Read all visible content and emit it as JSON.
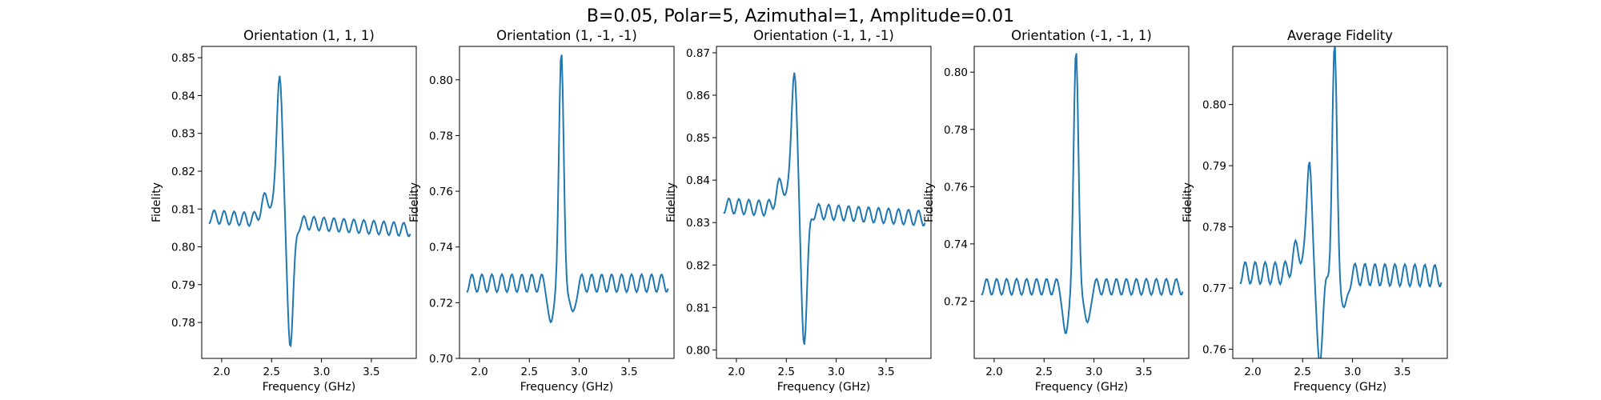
{
  "figure": {
    "suptitle": "B=0.05, Polar=5, Azimuthal=1, Amplitude=0.01",
    "line_color": "#1f77b4"
  },
  "chart_data": [
    {
      "type": "line",
      "title": "Orientation (1, 1, 1)",
      "xlabel": "Frequency (GHz)",
      "ylabel": "Fidelity",
      "xlim": [
        1.8,
        3.95
      ],
      "ylim": [
        0.7705,
        0.853
      ],
      "xticks": [
        2.0,
        2.5,
        3.0,
        3.5
      ],
      "yticks": [
        0.78,
        0.79,
        0.8,
        0.81,
        0.82,
        0.83,
        0.84,
        0.85
      ],
      "curve": {
        "x_start": 1.87,
        "x_end": 3.89,
        "points": 200,
        "baseline": 0.808,
        "drift": -0.0035,
        "osc_amp": 0.0018,
        "osc_period": 0.1,
        "peaks": [
          [
            2.58,
            0.04,
            0.028
          ],
          [
            2.69,
            -0.032,
            0.03
          ],
          [
            2.45,
            0.006,
            0.05
          ]
        ]
      }
    },
    {
      "type": "line",
      "title": "Orientation (1, -1, -1)",
      "xlabel": "Frequency (GHz)",
      "ylabel": "Fidelity",
      "xlim": [
        1.8,
        3.95
      ],
      "ylim": [
        0.7,
        0.812
      ],
      "xticks": [
        2.0,
        2.5,
        3.0,
        3.5
      ],
      "yticks": [
        0.7,
        0.72,
        0.74,
        0.76,
        0.78,
        0.8
      ],
      "curve": {
        "x_start": 1.87,
        "x_end": 3.89,
        "points": 200,
        "baseline": 0.727,
        "drift": 0.0,
        "osc_amp": 0.0032,
        "osc_period": 0.1,
        "peaks": [
          [
            2.82,
            0.08,
            0.024
          ],
          [
            2.72,
            -0.017,
            0.025
          ],
          [
            2.93,
            -0.013,
            0.025
          ]
        ]
      }
    },
    {
      "type": "line",
      "title": "Orientation (-1, 1, -1)",
      "xlabel": "Frequency (GHz)",
      "ylabel": "Fidelity",
      "xlim": [
        1.8,
        3.95
      ],
      "ylim": [
        0.798,
        0.8715
      ],
      "xticks": [
        2.0,
        2.5,
        3.0,
        3.5
      ],
      "yticks": [
        0.8,
        0.81,
        0.82,
        0.83,
        0.84,
        0.85,
        0.86,
        0.87
      ],
      "curve": {
        "x_start": 1.87,
        "x_end": 3.89,
        "points": 200,
        "baseline": 0.834,
        "drift": -0.003,
        "osc_amp": 0.0018,
        "osc_period": 0.1,
        "peaks": [
          [
            2.58,
            0.034,
            0.028
          ],
          [
            2.68,
            -0.03,
            0.03
          ],
          [
            2.45,
            0.006,
            0.05
          ]
        ]
      }
    },
    {
      "type": "line",
      "title": "Orientation (-1, -1, 1)",
      "xlabel": "Frequency (GHz)",
      "ylabel": "Fidelity",
      "xlim": [
        1.8,
        3.95
      ],
      "ylim": [
        0.7,
        0.809
      ],
      "xticks": [
        2.0,
        2.5,
        3.0,
        3.5
      ],
      "yticks": [
        0.72,
        0.74,
        0.76,
        0.78,
        0.8
      ],
      "curve": {
        "x_start": 1.87,
        "x_end": 3.89,
        "points": 200,
        "baseline": 0.725,
        "drift": 0.0,
        "osc_amp": 0.0028,
        "osc_period": 0.1,
        "peaks": [
          [
            2.82,
            0.08,
            0.024
          ],
          [
            2.72,
            -0.019,
            0.025
          ],
          [
            2.93,
            -0.015,
            0.025
          ]
        ]
      }
    },
    {
      "type": "line",
      "title": "Average Fidelity",
      "xlabel": "Frequency (GHz)",
      "ylabel": "Fidelity",
      "xlim": [
        1.8,
        3.95
      ],
      "ylim": [
        0.7585,
        0.8095
      ],
      "xticks": [
        2.0,
        2.5,
        3.0,
        3.5
      ],
      "yticks": [
        0.76,
        0.77,
        0.78,
        0.79,
        0.8
      ],
      "curve": {
        "x_start": 1.87,
        "x_end": 3.89,
        "points": 200,
        "baseline": 0.7725,
        "drift": -0.0005,
        "osc_amp": 0.0018,
        "osc_period": 0.1,
        "peaks": [
          [
            2.57,
            0.02,
            0.025
          ],
          [
            2.82,
            0.036,
            0.024
          ],
          [
            2.67,
            -0.013,
            0.035
          ],
          [
            2.92,
            -0.007,
            0.025
          ],
          [
            2.45,
            0.004,
            0.05
          ]
        ]
      }
    }
  ]
}
